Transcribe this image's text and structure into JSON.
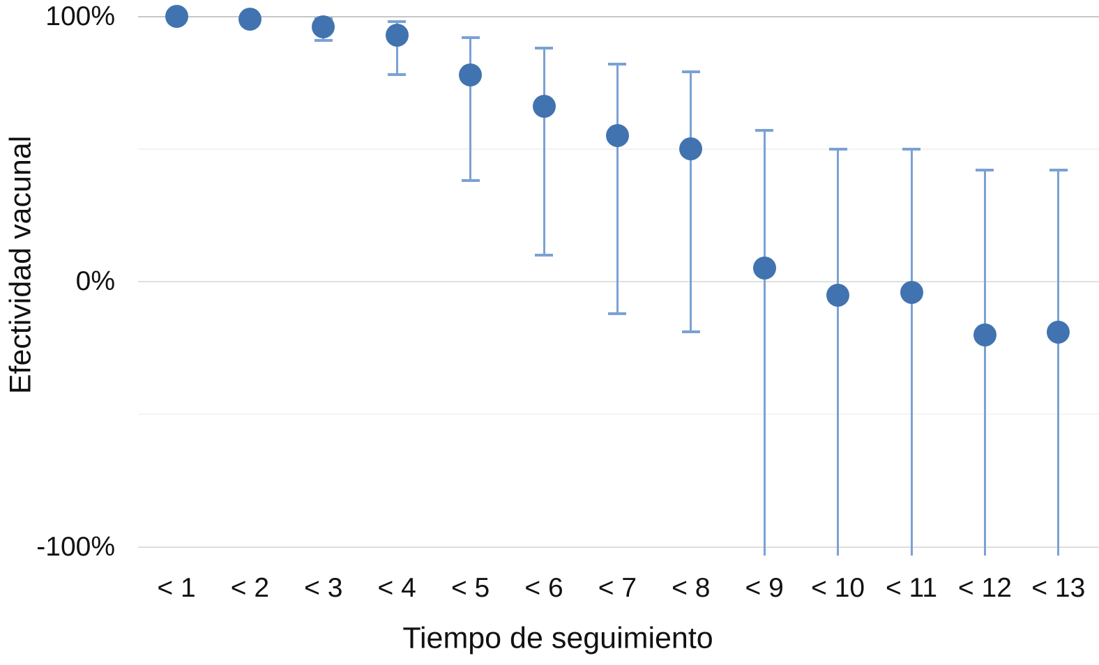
{
  "chart_data": {
    "type": "scatter",
    "title": "",
    "xlabel": "Tiempo de seguimiento",
    "ylabel": "Efectividad vacunal",
    "categories": [
      "< 1",
      "< 2",
      "< 3",
      "< 4",
      "< 5",
      "< 6",
      "< 7",
      "< 8",
      "< 9",
      "< 10",
      "< 11",
      "< 12",
      "< 13"
    ],
    "series": [
      {
        "name": "Efectividad vacunal",
        "points": [
          {
            "category": "< 1",
            "value": 100,
            "ci_high": null,
            "ci_low": null,
            "ci_low_clipped": false
          },
          {
            "category": "< 2",
            "value": 99,
            "ci_high": null,
            "ci_low": null,
            "ci_low_clipped": false
          },
          {
            "category": "< 3",
            "value": 96,
            "ci_high": 99,
            "ci_low": 91,
            "ci_low_clipped": false
          },
          {
            "category": "< 4",
            "value": 93,
            "ci_high": 98,
            "ci_low": 78,
            "ci_low_clipped": false
          },
          {
            "category": "< 5",
            "value": 78,
            "ci_high": 92,
            "ci_low": 38,
            "ci_low_clipped": false
          },
          {
            "category": "< 6",
            "value": 66,
            "ci_high": 88,
            "ci_low": 10,
            "ci_low_clipped": false
          },
          {
            "category": "< 7",
            "value": 55,
            "ci_high": 82,
            "ci_low": -12,
            "ci_low_clipped": false
          },
          {
            "category": "< 8",
            "value": 50,
            "ci_high": 79,
            "ci_low": -19,
            "ci_low_clipped": false
          },
          {
            "category": "< 9",
            "value": 5,
            "ci_high": 57,
            "ci_low": -100,
            "ci_low_clipped": true
          },
          {
            "category": "< 10",
            "value": -5,
            "ci_high": 50,
            "ci_low": -100,
            "ci_low_clipped": true
          },
          {
            "category": "< 11",
            "value": -4,
            "ci_high": 50,
            "ci_low": -100,
            "ci_low_clipped": true
          },
          {
            "category": "< 12",
            "value": -20,
            "ci_high": 42,
            "ci_low": -100,
            "ci_low_clipped": true
          },
          {
            "category": "< 13",
            "value": -19,
            "ci_high": 42,
            "ci_low": -100,
            "ci_low_clipped": true
          }
        ]
      }
    ],
    "y_axis": {
      "range": [
        -100,
        100
      ],
      "ticks": [
        {
          "value": 100,
          "label": "100%"
        },
        {
          "value": 0,
          "label": "0%"
        },
        {
          "value": -100,
          "label": "-100%"
        }
      ],
      "gridlines": [
        {
          "value": 100,
          "color": "#c6c6c6"
        },
        {
          "value": 50,
          "color": "#f3f3f3"
        },
        {
          "value": 0,
          "color": "#e0e0e0"
        },
        {
          "value": -50,
          "color": "#f4f4f4"
        },
        {
          "value": -100,
          "color": "#dedede"
        }
      ]
    },
    "legend": null,
    "grid": true
  },
  "colors": {
    "marker": "#4173b0",
    "error_bar": "#7ba1d4",
    "text": "#111111",
    "background": "#ffffff"
  }
}
